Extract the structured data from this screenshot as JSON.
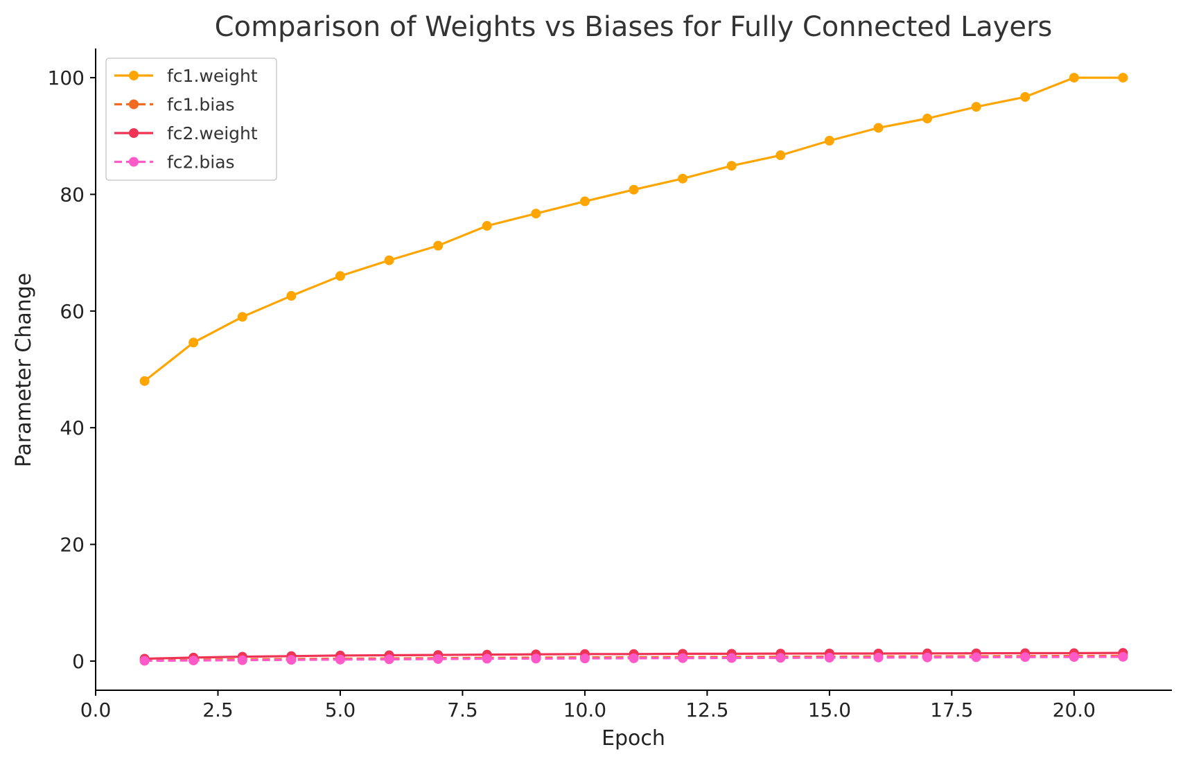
{
  "chart_data": {
    "type": "line",
    "title": "Comparison of Weights vs Biases for Fully Connected Layers",
    "xlabel": "Epoch",
    "ylabel": "Parameter Change",
    "xlim": [
      0,
      22
    ],
    "ylim": [
      -5,
      105
    ],
    "xticks": [
      0,
      2.5,
      5,
      7.5,
      10,
      12.5,
      15,
      17.5,
      20
    ],
    "xtick_labels": [
      "0.0",
      "2.5",
      "5.0",
      "7.5",
      "10.0",
      "12.5",
      "15.0",
      "17.5",
      "20.0"
    ],
    "yticks": [
      0,
      20,
      40,
      60,
      80,
      100
    ],
    "ytick_labels": [
      "0",
      "20",
      "40",
      "60",
      "80",
      "100"
    ],
    "grid": false,
    "legend_position": "top-left",
    "x": [
      1,
      2,
      3,
      4,
      5,
      6,
      7,
      8,
      9,
      10,
      11,
      12,
      13,
      14,
      15,
      16,
      17,
      18,
      19,
      20,
      21
    ],
    "series": [
      {
        "name": "fc1.weight",
        "color": "#FFA500",
        "dashed": false,
        "values": [
          48.0,
          54.6,
          59.0,
          62.6,
          66.0,
          68.7,
          71.2,
          74.6,
          76.7,
          78.8,
          80.8,
          82.7,
          84.9,
          86.7,
          89.2,
          91.4,
          93.0,
          95.0,
          96.7,
          100.0,
          100.0
        ]
      },
      {
        "name": "fc1.bias",
        "color": "#F26B22",
        "dashed": true,
        "values": [
          0.1,
          0.2,
          0.3,
          0.35,
          0.4,
          0.45,
          0.5,
          0.55,
          0.6,
          0.62,
          0.65,
          0.68,
          0.7,
          0.72,
          0.75,
          0.78,
          0.8,
          0.82,
          0.85,
          0.88,
          0.9
        ]
      },
      {
        "name": "fc2.weight",
        "color": "#EE3355",
        "dashed": false,
        "values": [
          0.4,
          0.6,
          0.75,
          0.85,
          0.95,
          1.0,
          1.05,
          1.1,
          1.15,
          1.2,
          1.2,
          1.25,
          1.25,
          1.28,
          1.3,
          1.3,
          1.32,
          1.33,
          1.35,
          1.35,
          1.4
        ]
      },
      {
        "name": "fc2.bias",
        "color": "#FF5AC8",
        "dashed": true,
        "values": [
          0.05,
          0.1,
          0.15,
          0.2,
          0.25,
          0.3,
          0.35,
          0.4,
          0.42,
          0.45,
          0.48,
          0.5,
          0.52,
          0.55,
          0.58,
          0.6,
          0.62,
          0.65,
          0.68,
          0.7,
          0.72
        ]
      }
    ]
  }
}
